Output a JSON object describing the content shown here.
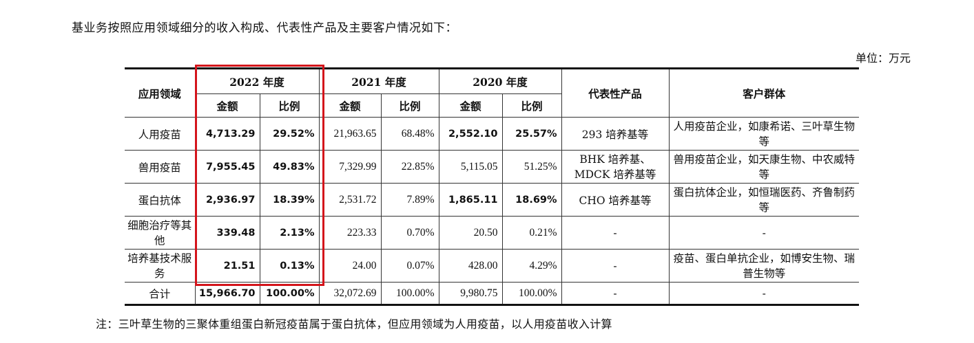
{
  "intro": "基业务按照应用领域细分的收入构成、代表性产品及主要客户情况如下：",
  "unit": "单位：万元",
  "table": {
    "header": {
      "field": "应用领域",
      "y2022": "2022 年度",
      "y2021": "2021 年度",
      "y2020": "2020 年度",
      "amount": "金额",
      "ratio": "比例",
      "product": "代表性产品",
      "customer": "客户群体"
    },
    "rows": [
      {
        "field": "人用疫苗",
        "a2022": "4,713.29",
        "r2022": "29.52%",
        "a2021": "21,963.65",
        "r2021": "68.48%",
        "a2020": "2,552.10",
        "r2020": "25.57%",
        "product": "293 培养基等",
        "customer": "人用疫苗企业，如康希诺、三叶草生物等"
      },
      {
        "field": "兽用疫苗",
        "a2022": "7,955.45",
        "r2022": "49.83%",
        "a2021": "7,329.99",
        "r2021": "22.85%",
        "a2020": "5,115.05",
        "r2020": "51.25%",
        "product": "BHK 培养基、MDCK 培养基等",
        "customer": "兽用疫苗企业，如天康生物、中农威特等"
      },
      {
        "field": "蛋白抗体",
        "a2022": "2,936.97",
        "r2022": "18.39%",
        "a2021": "2,531.72",
        "r2021": "7.89%",
        "a2020": "1,865.11",
        "r2020": "18.69%",
        "product": "CHO 培养基等",
        "customer": "蛋白抗体企业，如恒瑞医药、齐鲁制药等"
      },
      {
        "field": "细胞治疗等其他",
        "a2022": "339.48",
        "r2022": "2.13%",
        "a2021": "223.33",
        "r2021": "0.70%",
        "a2020": "20.50",
        "r2020": "0.21%",
        "product": "-",
        "customer": "-"
      },
      {
        "field": "培养基技术服务",
        "a2022": "21.51",
        "r2022": "0.13%",
        "a2021": "24.00",
        "r2021": "0.07%",
        "a2020": "428.00",
        "r2020": "4.29%",
        "product": "-",
        "customer": "疫苗、蛋白单抗企业，如博安生物、瑞普生物等"
      }
    ],
    "total": {
      "field": "合计",
      "a2022": "15,966.70",
      "r2022": "100.00%",
      "a2021": "32,072.69",
      "r2021": "100.00%",
      "a2020": "9,980.75",
      "r2020": "100.00%",
      "product": "-",
      "customer": "-"
    }
  },
  "note": "注：三叶草生物的三聚体重组蛋白新冠疫苗属于蛋白抗体，但应用领域为人用疫苗，以人用疫苗收入计算",
  "colors": {
    "highlight": "#d4141b"
  }
}
